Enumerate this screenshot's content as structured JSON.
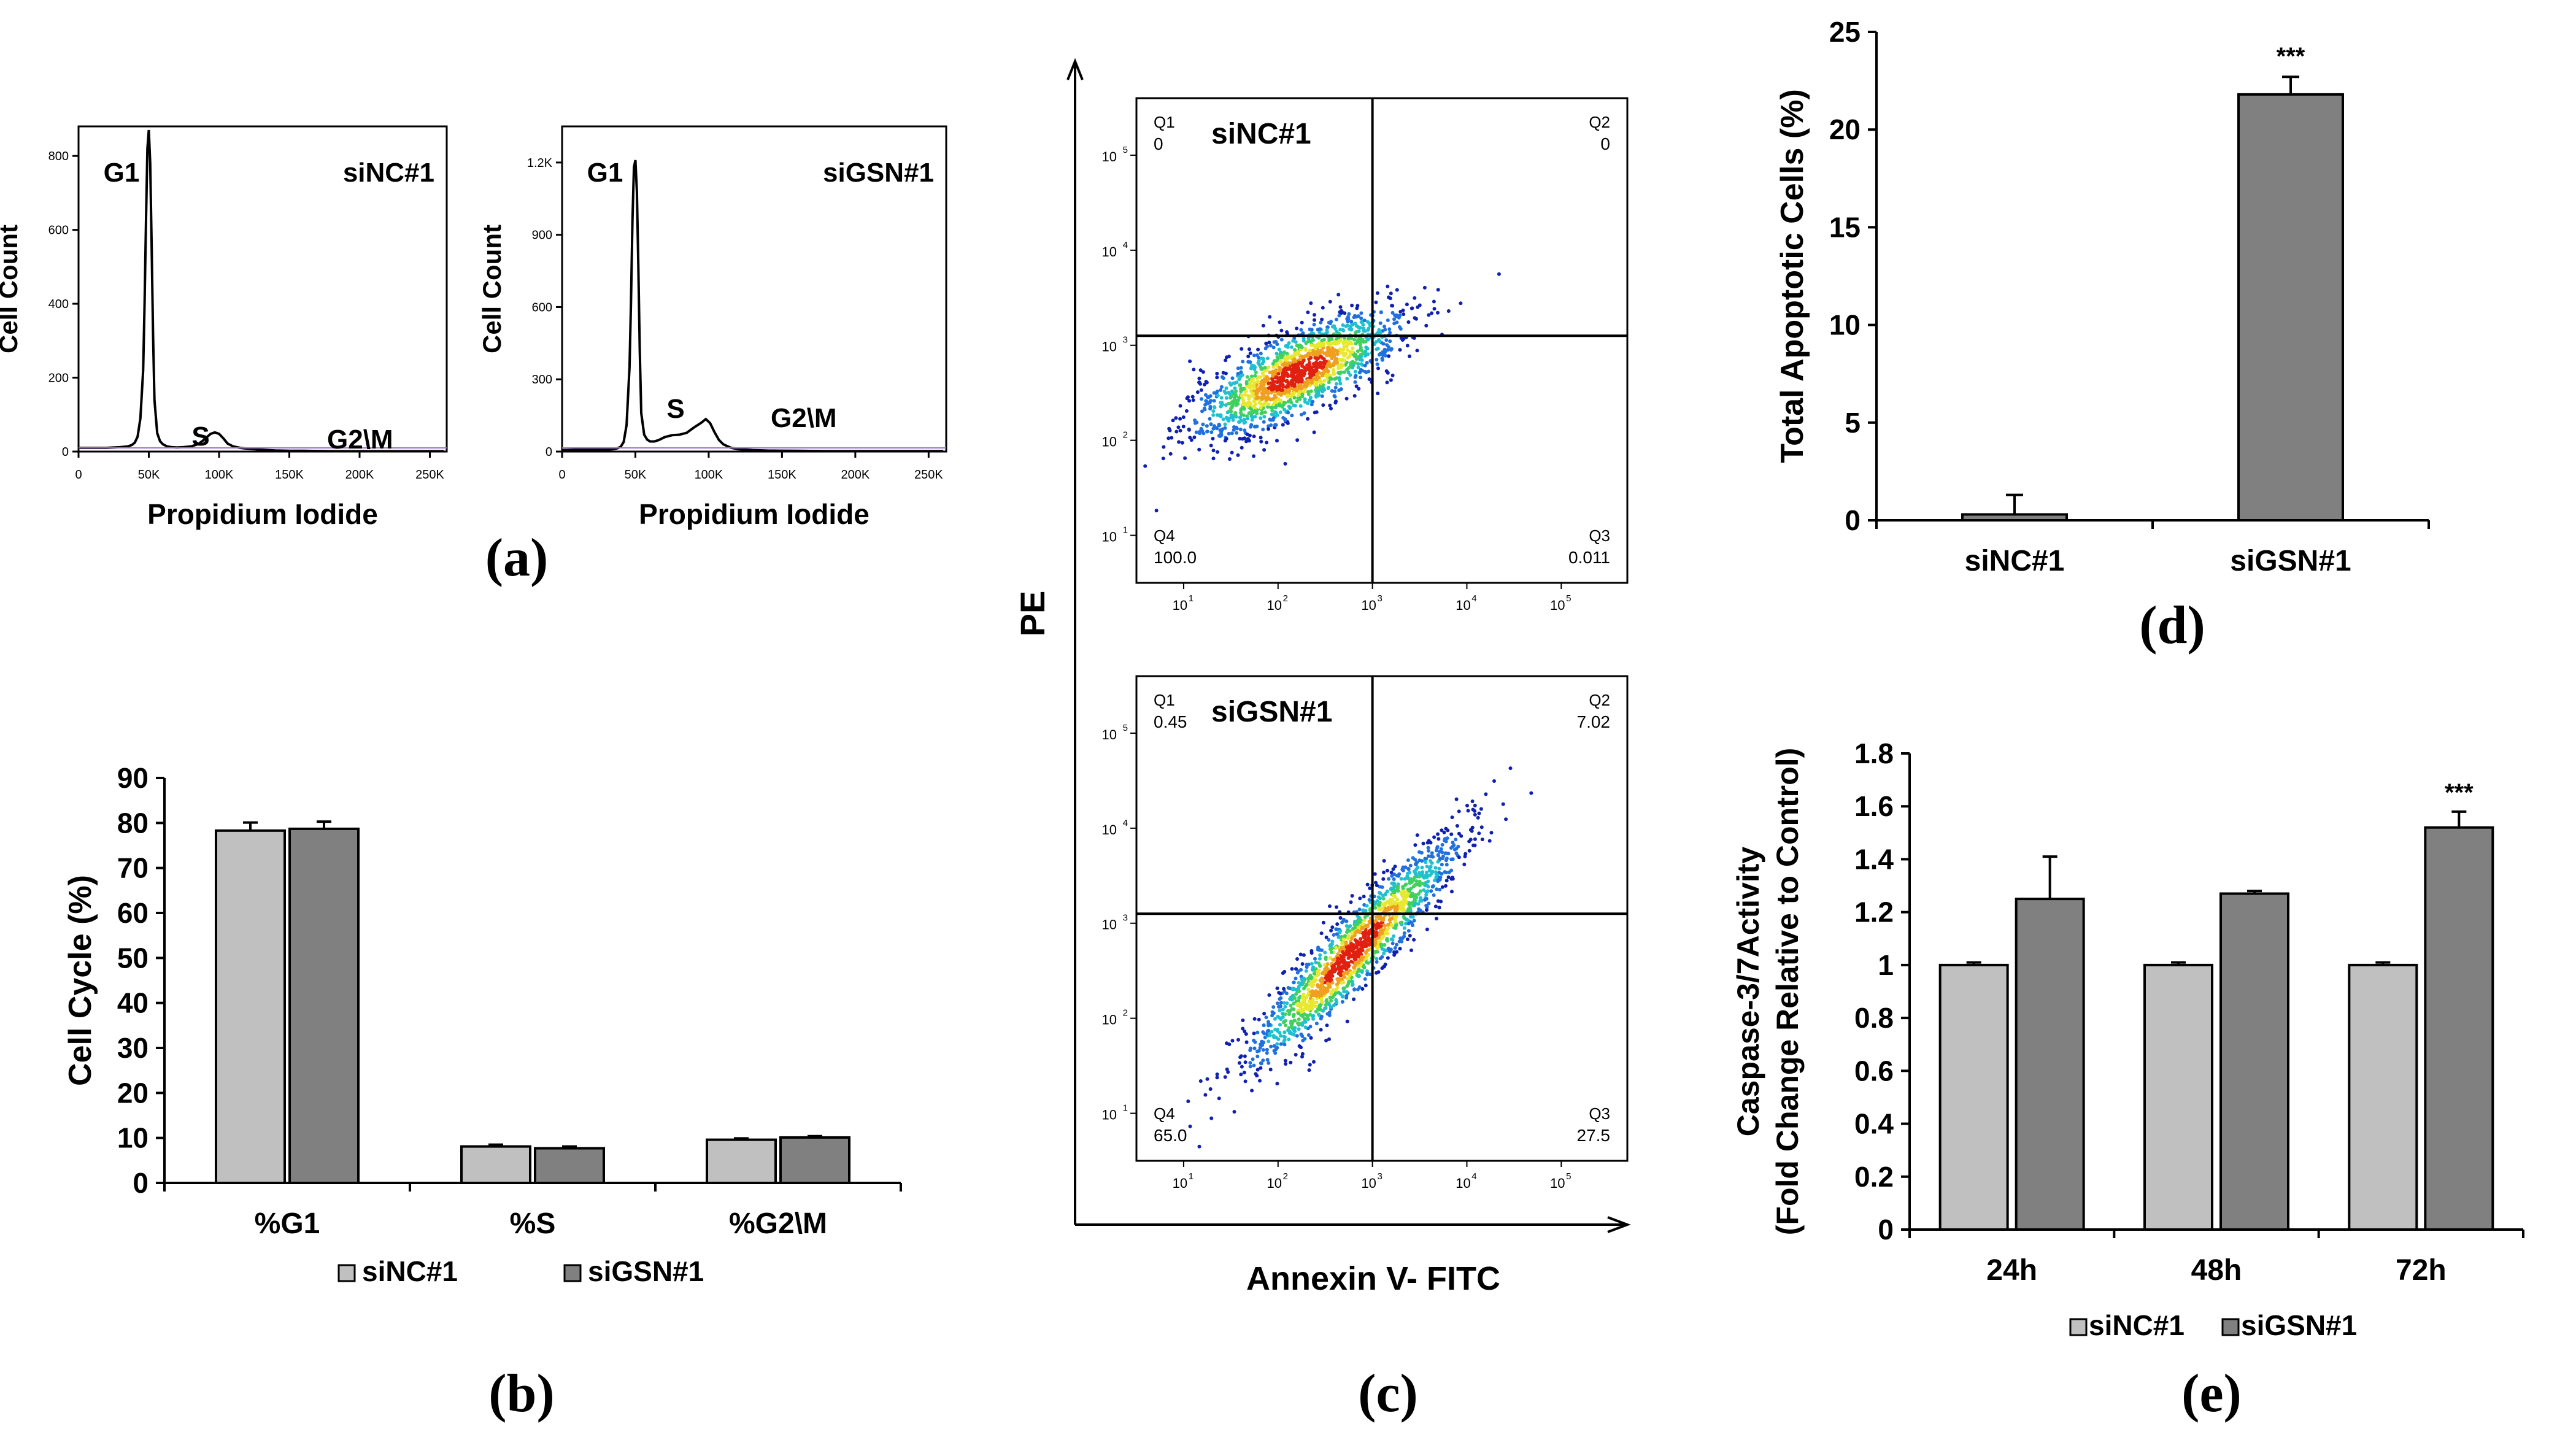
{
  "colors": {
    "siNC": "#c0c0c0",
    "siGSN": "#808080",
    "axis": "#000000"
  },
  "panel_labels": {
    "a": "(a)",
    "b": "(b)",
    "c": "(c)",
    "d": "(d)",
    "e": "(e)"
  },
  "chart_data": [
    {
      "id": "a1",
      "type": "histogram",
      "sample": "siNC#1",
      "xlabel": "Propidium Iodide",
      "ylabel": "Cell Count",
      "xticks": [
        "0",
        "50K",
        "100K",
        "150K",
        "200K",
        "250K"
      ],
      "yticks": [
        "0",
        "200",
        "400",
        "600",
        "800"
      ],
      "xlim": [
        0,
        262
      ],
      "ylim": [
        0,
        880
      ],
      "peak_labels": [
        "G1",
        "S",
        "G2\\M"
      ],
      "x": [
        0,
        5,
        10,
        15,
        20,
        25,
        30,
        35,
        38,
        40,
        42,
        44,
        46,
        47,
        48,
        49,
        50,
        51,
        52,
        53,
        54,
        56,
        58,
        60,
        63,
        66,
        70,
        75,
        80,
        85,
        88,
        91,
        94,
        97,
        100,
        103,
        106,
        110,
        115,
        120,
        130,
        140,
        150,
        160,
        180,
        200,
        220,
        240,
        260
      ],
      "y": [
        10,
        10,
        10,
        10,
        10,
        11,
        12,
        14,
        18,
        24,
        40,
        90,
        220,
        400,
        620,
        820,
        870,
        780,
        560,
        320,
        140,
        50,
        28,
        20,
        14,
        12,
        11,
        12,
        14,
        20,
        28,
        38,
        48,
        52,
        48,
        36,
        22,
        14,
        10,
        8,
        5,
        3,
        2,
        2,
        1,
        1,
        1,
        1,
        1
      ]
    },
    {
      "id": "a2",
      "type": "histogram",
      "sample": "siGSN#1",
      "xlabel": "Propidium Iodide",
      "ylabel": "Cell Count",
      "xticks": [
        "0",
        "50K",
        "100K",
        "150K",
        "200K",
        "250K"
      ],
      "yticks": [
        "0",
        "300",
        "600",
        "900",
        "1.2K"
      ],
      "xlim": [
        0,
        262
      ],
      "ylim": [
        0,
        1350
      ],
      "peak_labels": [
        "G1",
        "S",
        "G2\\M"
      ],
      "x": [
        0,
        10,
        20,
        30,
        35,
        38,
        40,
        42,
        44,
        46,
        47,
        48,
        49,
        50,
        51,
        52,
        53,
        54,
        56,
        58,
        60,
        63,
        66,
        70,
        75,
        80,
        85,
        90,
        95,
        98,
        101,
        104,
        107,
        110,
        115,
        120,
        130,
        140,
        160,
        180,
        200,
        220,
        240,
        260
      ],
      "y": [
        6,
        8,
        8,
        8,
        10,
        14,
        20,
        40,
        110,
        350,
        620,
        960,
        1180,
        1210,
        1080,
        780,
        420,
        160,
        70,
        50,
        42,
        42,
        48,
        60,
        68,
        70,
        78,
        100,
        120,
        135,
        118,
        80,
        48,
        30,
        16,
        10,
        6,
        4,
        3,
        2,
        2,
        2,
        2,
        2
      ]
    },
    {
      "id": "b",
      "type": "bar",
      "ylabel": "Cell Cycle (%)",
      "categories": [
        "%G1",
        "%S",
        "%G2\\M"
      ],
      "series": [
        {
          "name": "siNC#1",
          "values": [
            78.3,
            8.1,
            9.6
          ],
          "errors": [
            1.8,
            0.4,
            0.3
          ]
        },
        {
          "name": "siGSN#1",
          "values": [
            78.7,
            7.7,
            10.1
          ],
          "errors": [
            1.6,
            0.4,
            0.3
          ]
        }
      ],
      "ylim": [
        0,
        90
      ],
      "yticks": [
        "0",
        "10",
        "20",
        "30",
        "40",
        "50",
        "60",
        "70",
        "80",
        "90"
      ],
      "legend": [
        "siNC#1",
        "siGSN#1"
      ]
    },
    {
      "id": "c1",
      "type": "scatter",
      "sample": "siNC#1",
      "xlabel": "Annexin V- FITC",
      "ylabel": "PE",
      "quadrants": [
        {
          "name": "Q1",
          "value": "0"
        },
        {
          "name": "Q2",
          "value": "0"
        },
        {
          "name": "Q3",
          "value": "0.011"
        },
        {
          "name": "Q4",
          "value": "100.0"
        }
      ],
      "xticks": [
        "10",
        "10",
        "10",
        "10",
        "10"
      ],
      "yticks": [
        "10",
        "10",
        "10",
        "10",
        "10"
      ],
      "tick_exponents": [
        "1",
        "2",
        "3",
        "4",
        "5"
      ],
      "gate_x": 3.0,
      "gate_y": 3.1,
      "cloud_center": [
        2.2,
        2.7
      ],
      "cloud_slope": 0.45
    },
    {
      "id": "c2",
      "type": "scatter",
      "sample": "siGSN#1",
      "quadrants": [
        {
          "name": "Q1",
          "value": "0.45"
        },
        {
          "name": "Q2",
          "value": "7.02"
        },
        {
          "name": "Q3",
          "value": "27.5"
        },
        {
          "name": "Q4",
          "value": "65.0"
        }
      ],
      "xticks": [
        "10",
        "10",
        "10",
        "10",
        "10"
      ],
      "yticks": [
        "10",
        "10",
        "10",
        "10",
        "10"
      ],
      "tick_exponents": [
        "1",
        "2",
        "3",
        "4",
        "5"
      ],
      "gate_x": 3.0,
      "gate_y": 3.1,
      "cloud_center": [
        2.8,
        2.7
      ],
      "cloud_slope": 1.0
    },
    {
      "id": "d",
      "type": "bar",
      "ylabel": "Total Apoptotic Cells (%)",
      "categories": [
        "siNC#1",
        "siGSN#1"
      ],
      "values": [
        0.3,
        21.8
      ],
      "errors": [
        1.0,
        0.9
      ],
      "significance": [
        "",
        "***"
      ],
      "ylim": [
        0,
        25
      ],
      "yticks": [
        "0",
        "5",
        "10",
        "15",
        "20",
        "25"
      ]
    },
    {
      "id": "e",
      "type": "bar",
      "ylabel_lines": [
        "Caspase-3/7Activity",
        "(Fold Change Relative to Control)"
      ],
      "categories": [
        "24h",
        "48h",
        "72h"
      ],
      "series": [
        {
          "name": "siNC#1",
          "values": [
            1.0,
            1.0,
            1.0
          ],
          "errors": [
            0.01,
            0.01,
            0.01
          ]
        },
        {
          "name": "siGSN#1",
          "values": [
            1.25,
            1.27,
            1.52
          ],
          "errors": [
            0.16,
            0.01,
            0.06
          ]
        }
      ],
      "significance": [
        "",
        "",
        "***"
      ],
      "ylim": [
        0,
        1.8
      ],
      "yticks": [
        "0",
        "0.2",
        "0.4",
        "0.6",
        "0.8",
        "1",
        "1.2",
        "1.4",
        "1.6",
        "1.8"
      ],
      "legend": [
        "siNC#1",
        "siGSN#1"
      ]
    }
  ]
}
